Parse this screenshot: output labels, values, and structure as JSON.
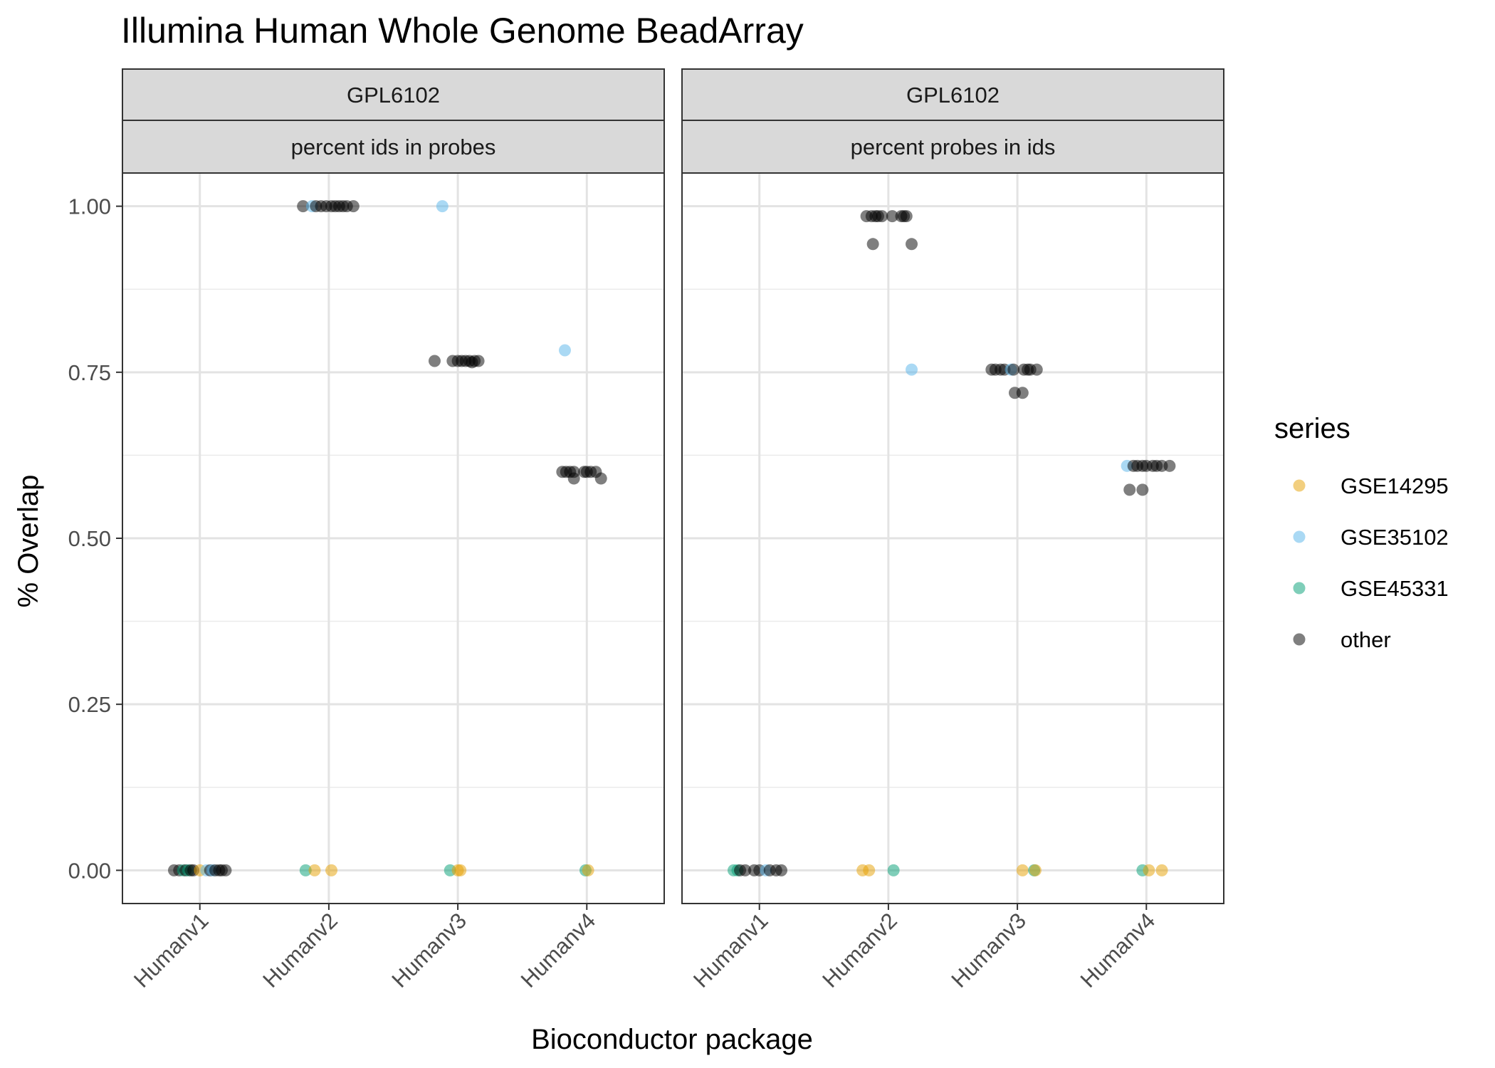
{
  "chart_data": {
    "type": "scatter",
    "title": "Illumina Human Whole Genome BeadArray",
    "xlabel": "Bioconductor package",
    "ylabel": "% Overlap",
    "categories": [
      "Humanv1",
      "Humanv2",
      "Humanv3",
      "Humanv4"
    ],
    "ylim": [
      -0.05,
      1.05
    ],
    "yticks": [
      0,
      0.25,
      0.5,
      0.75,
      1
    ],
    "ytick_labels": [
      "0.00",
      "0.25",
      "0.50",
      "0.75",
      "1.00"
    ],
    "grid": true,
    "legend": {
      "title": "series",
      "position": "right",
      "entries": [
        {
          "name": "GSE14295",
          "color": "#E69F00"
        },
        {
          "name": "GSE35102",
          "color": "#56B4E9"
        },
        {
          "name": "GSE45331",
          "color": "#009E73"
        },
        {
          "name": "other",
          "color": "#000000"
        }
      ]
    },
    "panels": [
      {
        "strip_top": "GPL6102",
        "strip_bottom": "percent ids in probes",
        "points": [
          {
            "series": "other",
            "x": "Humanv1",
            "dx": -0.2,
            "y": 0
          },
          {
            "series": "other",
            "x": "Humanv1",
            "dx": -0.16,
            "y": 0
          },
          {
            "series": "GSE45331",
            "x": "Humanv1",
            "dx": -0.13,
            "y": 0
          },
          {
            "series": "other",
            "x": "Humanv1",
            "dx": -0.11,
            "y": 0
          },
          {
            "series": "GSE45331",
            "x": "Humanv1",
            "dx": -0.09,
            "y": 0
          },
          {
            "series": "other",
            "x": "Humanv1",
            "dx": -0.07,
            "y": 0
          },
          {
            "series": "other",
            "x": "Humanv1",
            "dx": -0.05,
            "y": 0
          },
          {
            "series": "GSE14295",
            "x": "Humanv1",
            "dx": 0.0,
            "y": 0
          },
          {
            "series": "GSE35102",
            "x": "Humanv1",
            "dx": 0.05,
            "y": 0
          },
          {
            "series": "other",
            "x": "Humanv1",
            "dx": 0.08,
            "y": 0
          },
          {
            "series": "GSE35102",
            "x": "Humanv1",
            "dx": 0.1,
            "y": 0
          },
          {
            "series": "other",
            "x": "Humanv1",
            "dx": 0.12,
            "y": 0
          },
          {
            "series": "other",
            "x": "Humanv1",
            "dx": 0.15,
            "y": 0
          },
          {
            "series": "other",
            "x": "Humanv1",
            "dx": 0.17,
            "y": 0
          },
          {
            "series": "other",
            "x": "Humanv1",
            "dx": 0.2,
            "y": 0
          },
          {
            "series": "other",
            "x": "Humanv2",
            "dx": -0.2,
            "y": 1.0
          },
          {
            "series": "GSE35102",
            "x": "Humanv2",
            "dx": -0.13,
            "y": 1.0
          },
          {
            "series": "other",
            "x": "Humanv2",
            "dx": -0.1,
            "y": 1.0
          },
          {
            "series": "other",
            "x": "Humanv2",
            "dx": -0.06,
            "y": 1.0
          },
          {
            "series": "other",
            "x": "Humanv2",
            "dx": -0.02,
            "y": 1.0
          },
          {
            "series": "other",
            "x": "Humanv2",
            "dx": 0.02,
            "y": 1.0
          },
          {
            "series": "other",
            "x": "Humanv2",
            "dx": 0.05,
            "y": 1.0
          },
          {
            "series": "other",
            "x": "Humanv2",
            "dx": 0.08,
            "y": 1.0
          },
          {
            "series": "other",
            "x": "Humanv2",
            "dx": 0.11,
            "y": 1.0
          },
          {
            "series": "other",
            "x": "Humanv2",
            "dx": 0.14,
            "y": 1.0
          },
          {
            "series": "other",
            "x": "Humanv2",
            "dx": 0.19,
            "y": 1.0
          },
          {
            "series": "GSE45331",
            "x": "Humanv2",
            "dx": -0.18,
            "y": 0
          },
          {
            "series": "GSE14295",
            "x": "Humanv2",
            "dx": -0.11,
            "y": 0
          },
          {
            "series": "GSE14295",
            "x": "Humanv2",
            "dx": 0.02,
            "y": 0
          },
          {
            "series": "other",
            "x": "Humanv3",
            "dx": -0.18,
            "y": 0.767
          },
          {
            "series": "other",
            "x": "Humanv3",
            "dx": -0.04,
            "y": 0.767
          },
          {
            "series": "other",
            "x": "Humanv3",
            "dx": 0.0,
            "y": 0.767
          },
          {
            "series": "other",
            "x": "Humanv3",
            "dx": 0.03,
            "y": 0.767
          },
          {
            "series": "other",
            "x": "Humanv3",
            "dx": 0.06,
            "y": 0.767
          },
          {
            "series": "other",
            "x": "Humanv3",
            "dx": 0.09,
            "y": 0.767
          },
          {
            "series": "other",
            "x": "Humanv3",
            "dx": 0.11,
            "y": 0.765
          },
          {
            "series": "other",
            "x": "Humanv3",
            "dx": 0.13,
            "y": 0.767
          },
          {
            "series": "other",
            "x": "Humanv3",
            "dx": 0.16,
            "y": 0.767
          },
          {
            "series": "GSE35102",
            "x": "Humanv3",
            "dx": -0.12,
            "y": 1.0
          },
          {
            "series": "GSE45331",
            "x": "Humanv3",
            "dx": -0.06,
            "y": 0
          },
          {
            "series": "GSE14295",
            "x": "Humanv3",
            "dx": 0.0,
            "y": 0
          },
          {
            "series": "GSE14295",
            "x": "Humanv3",
            "dx": 0.02,
            "y": 0
          },
          {
            "series": "GSE35102",
            "x": "Humanv4",
            "dx": -0.17,
            "y": 0.783
          },
          {
            "series": "other",
            "x": "Humanv4",
            "dx": -0.19,
            "y": 0.6
          },
          {
            "series": "other",
            "x": "Humanv4",
            "dx": -0.16,
            "y": 0.6
          },
          {
            "series": "other",
            "x": "Humanv4",
            "dx": -0.13,
            "y": 0.6
          },
          {
            "series": "other",
            "x": "Humanv4",
            "dx": -0.1,
            "y": 0.6
          },
          {
            "series": "other",
            "x": "Humanv4",
            "dx": -0.1,
            "y": 0.59
          },
          {
            "series": "other",
            "x": "Humanv4",
            "dx": -0.02,
            "y": 0.6
          },
          {
            "series": "other",
            "x": "Humanv4",
            "dx": 0.0,
            "y": 0.6
          },
          {
            "series": "other",
            "x": "Humanv4",
            "dx": 0.03,
            "y": 0.6
          },
          {
            "series": "other",
            "x": "Humanv4",
            "dx": 0.07,
            "y": 0.6
          },
          {
            "series": "other",
            "x": "Humanv4",
            "dx": 0.11,
            "y": 0.59
          },
          {
            "series": "GSE45331",
            "x": "Humanv4",
            "dx": -0.01,
            "y": 0
          },
          {
            "series": "GSE14295",
            "x": "Humanv4",
            "dx": 0.01,
            "y": 0
          }
        ]
      },
      {
        "strip_top": "GPL6102",
        "strip_bottom": "percent probes in ids",
        "points": [
          {
            "series": "GSE45331",
            "x": "Humanv1",
            "dx": -0.2,
            "y": 0
          },
          {
            "series": "GSE45331",
            "x": "Humanv1",
            "dx": -0.17,
            "y": 0
          },
          {
            "series": "other",
            "x": "Humanv1",
            "dx": -0.15,
            "y": 0
          },
          {
            "series": "other",
            "x": "Humanv1",
            "dx": -0.11,
            "y": 0
          },
          {
            "series": "other",
            "x": "Humanv1",
            "dx": -0.04,
            "y": 0
          },
          {
            "series": "other",
            "x": "Humanv1",
            "dx": 0.0,
            "y": 0
          },
          {
            "series": "GSE35102",
            "x": "Humanv1",
            "dx": 0.05,
            "y": 0
          },
          {
            "series": "other",
            "x": "Humanv1",
            "dx": 0.08,
            "y": 0
          },
          {
            "series": "other",
            "x": "Humanv1",
            "dx": 0.13,
            "y": 0
          },
          {
            "series": "other",
            "x": "Humanv1",
            "dx": 0.17,
            "y": 0
          },
          {
            "series": "other",
            "x": "Humanv2",
            "dx": -0.17,
            "y": 0.985
          },
          {
            "series": "other",
            "x": "Humanv2",
            "dx": -0.13,
            "y": 0.985
          },
          {
            "series": "other",
            "x": "Humanv2",
            "dx": -0.1,
            "y": 0.985
          },
          {
            "series": "other",
            "x": "Humanv2",
            "dx": -0.08,
            "y": 0.985
          },
          {
            "series": "other",
            "x": "Humanv2",
            "dx": -0.05,
            "y": 0.985
          },
          {
            "series": "other",
            "x": "Humanv2",
            "dx": 0.03,
            "y": 0.985
          },
          {
            "series": "other",
            "x": "Humanv2",
            "dx": 0.1,
            "y": 0.985
          },
          {
            "series": "other",
            "x": "Humanv2",
            "dx": 0.12,
            "y": 0.985
          },
          {
            "series": "other",
            "x": "Humanv2",
            "dx": 0.14,
            "y": 0.985
          },
          {
            "series": "other",
            "x": "Humanv2",
            "dx": -0.12,
            "y": 0.943
          },
          {
            "series": "other",
            "x": "Humanv2",
            "dx": 0.18,
            "y": 0.943
          },
          {
            "series": "GSE35102",
            "x": "Humanv2",
            "dx": 0.18,
            "y": 0.754
          },
          {
            "series": "GSE14295",
            "x": "Humanv2",
            "dx": -0.2,
            "y": 0
          },
          {
            "series": "GSE14295",
            "x": "Humanv2",
            "dx": -0.15,
            "y": 0
          },
          {
            "series": "GSE45331",
            "x": "Humanv2",
            "dx": 0.04,
            "y": 0
          },
          {
            "series": "other",
            "x": "Humanv3",
            "dx": -0.2,
            "y": 0.754
          },
          {
            "series": "other",
            "x": "Humanv3",
            "dx": -0.17,
            "y": 0.754
          },
          {
            "series": "other",
            "x": "Humanv3",
            "dx": -0.13,
            "y": 0.754
          },
          {
            "series": "other",
            "x": "Humanv3",
            "dx": -0.1,
            "y": 0.754
          },
          {
            "series": "GSE35102",
            "x": "Humanv3",
            "dx": -0.05,
            "y": 0.754
          },
          {
            "series": "other",
            "x": "Humanv3",
            "dx": -0.03,
            "y": 0.754
          },
          {
            "series": "other",
            "x": "Humanv3",
            "dx": 0.05,
            "y": 0.754
          },
          {
            "series": "other",
            "x": "Humanv3",
            "dx": 0.08,
            "y": 0.754
          },
          {
            "series": "other",
            "x": "Humanv3",
            "dx": 0.1,
            "y": 0.754
          },
          {
            "series": "other",
            "x": "Humanv3",
            "dx": 0.15,
            "y": 0.754
          },
          {
            "series": "other",
            "x": "Humanv3",
            "dx": -0.02,
            "y": 0.719
          },
          {
            "series": "other",
            "x": "Humanv3",
            "dx": 0.04,
            "y": 0.719
          },
          {
            "series": "GSE14295",
            "x": "Humanv3",
            "dx": 0.04,
            "y": 0
          },
          {
            "series": "GSE45331",
            "x": "Humanv3",
            "dx": 0.13,
            "y": 0
          },
          {
            "series": "GSE14295",
            "x": "Humanv3",
            "dx": 0.14,
            "y": 0
          },
          {
            "series": "GSE35102",
            "x": "Humanv4",
            "dx": -0.15,
            "y": 0.609
          },
          {
            "series": "other",
            "x": "Humanv4",
            "dx": -0.1,
            "y": 0.609
          },
          {
            "series": "other",
            "x": "Humanv4",
            "dx": -0.07,
            "y": 0.609
          },
          {
            "series": "other",
            "x": "Humanv4",
            "dx": -0.03,
            "y": 0.609
          },
          {
            "series": "other",
            "x": "Humanv4",
            "dx": 0.0,
            "y": 0.609
          },
          {
            "series": "other",
            "x": "Humanv4",
            "dx": 0.05,
            "y": 0.609
          },
          {
            "series": "other",
            "x": "Humanv4",
            "dx": 0.08,
            "y": 0.609
          },
          {
            "series": "other",
            "x": "Humanv4",
            "dx": 0.12,
            "y": 0.609
          },
          {
            "series": "other",
            "x": "Humanv4",
            "dx": 0.18,
            "y": 0.609
          },
          {
            "series": "other",
            "x": "Humanv4",
            "dx": -0.13,
            "y": 0.573
          },
          {
            "series": "other",
            "x": "Humanv4",
            "dx": -0.03,
            "y": 0.573
          },
          {
            "series": "GSE45331",
            "x": "Humanv4",
            "dx": -0.03,
            "y": 0
          },
          {
            "series": "GSE14295",
            "x": "Humanv4",
            "dx": 0.02,
            "y": 0
          },
          {
            "series": "GSE14295",
            "x": "Humanv4",
            "dx": 0.12,
            "y": 0
          }
        ]
      }
    ]
  }
}
